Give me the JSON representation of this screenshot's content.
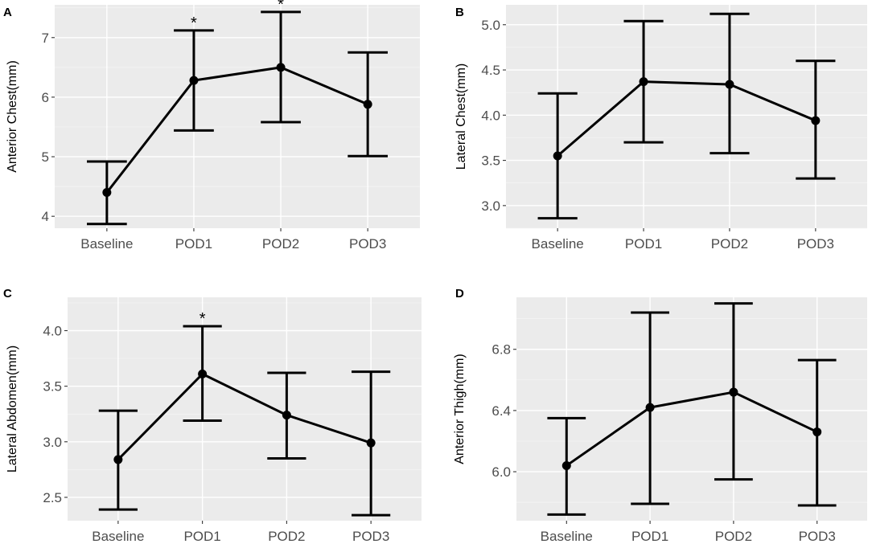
{
  "chart_data": [
    {
      "type": "line",
      "panel_label": "A",
      "ylabel": "Anterior Chest(mm)",
      "xlabel": "",
      "categories": [
        "Baseline",
        "POD1",
        "POD2",
        "POD3"
      ],
      "series": [
        {
          "name": "Anterior Chest",
          "values": [
            4.4,
            6.28,
            6.5,
            5.88
          ],
          "lower": [
            3.87,
            5.44,
            5.58,
            5.01
          ],
          "upper": [
            4.92,
            7.12,
            7.43,
            6.75
          ]
        }
      ],
      "significance": [
        "",
        "*",
        "*",
        ""
      ],
      "ylim": [
        3.8,
        7.55
      ],
      "yticks": [
        4,
        5,
        6,
        7
      ],
      "ytick_labels": [
        "4",
        "5",
        "6",
        "7"
      ]
    },
    {
      "type": "line",
      "panel_label": "B",
      "ylabel": "Lateral Chest(mm)",
      "xlabel": "",
      "categories": [
        "Baseline",
        "POD1",
        "POD2",
        "POD3"
      ],
      "series": [
        {
          "name": "Lateral Chest",
          "values": [
            3.55,
            4.37,
            4.34,
            3.94
          ],
          "lower": [
            2.86,
            3.7,
            3.58,
            3.3
          ],
          "upper": [
            4.24,
            5.04,
            5.12,
            4.6
          ]
        }
      ],
      "significance": [
        "",
        "",
        "",
        ""
      ],
      "ylim": [
        2.75,
        5.22
      ],
      "yticks": [
        3.0,
        3.5,
        4.0,
        4.5,
        5.0
      ],
      "ytick_labels": [
        "3.0",
        "3.5",
        "4.0",
        "4.5",
        "5.0"
      ]
    },
    {
      "type": "line",
      "panel_label": "C",
      "ylabel": "Lateral Abdomen(mm)",
      "xlabel": "",
      "categories": [
        "Baseline",
        "POD1",
        "POD2",
        "POD3"
      ],
      "series": [
        {
          "name": "Lateral Abdomen",
          "values": [
            2.84,
            3.61,
            3.24,
            2.99
          ],
          "lower": [
            2.39,
            3.19,
            2.85,
            2.34
          ],
          "upper": [
            3.28,
            4.04,
            3.62,
            3.63
          ]
        }
      ],
      "significance": [
        "",
        "*",
        "",
        ""
      ],
      "ylim": [
        2.29,
        4.3
      ],
      "yticks": [
        2.5,
        3.0,
        3.5,
        4.0
      ],
      "ytick_labels": [
        "2.5",
        "3.0",
        "3.5",
        "4.0"
      ]
    },
    {
      "type": "line",
      "panel_label": "D",
      "ylabel": "Anterior Thigh(mm)",
      "xlabel": "",
      "categories": [
        "Baseline",
        "POD1",
        "POD2",
        "POD3"
      ],
      "series": [
        {
          "name": "Anterior Thigh",
          "values": [
            6.04,
            6.42,
            6.52,
            6.26
          ],
          "lower": [
            5.72,
            5.79,
            5.95,
            5.78
          ],
          "upper": [
            6.35,
            7.04,
            7.1,
            6.73
          ]
        }
      ],
      "significance": [
        "",
        "",
        "",
        ""
      ],
      "ylim": [
        5.68,
        7.14
      ],
      "yticks": [
        6.0,
        6.4,
        6.8
      ],
      "ytick_labels": [
        "6.0",
        "6.4",
        "6.8"
      ]
    }
  ]
}
